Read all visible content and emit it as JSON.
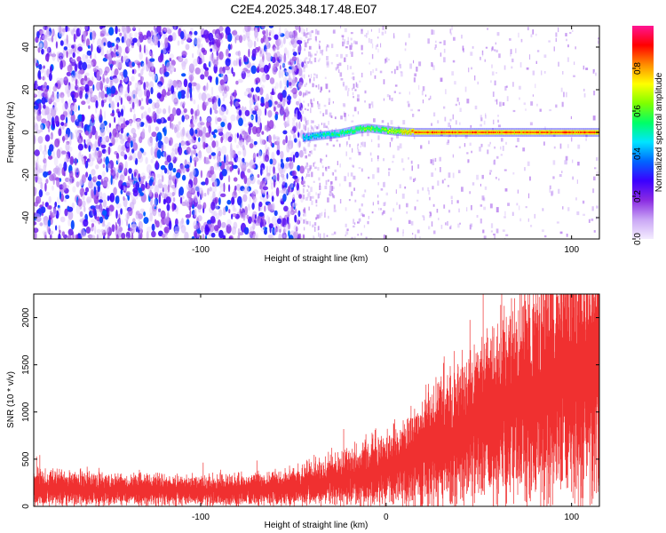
{
  "title": "C2E4.2025.348.17.48.E07",
  "chart_data": [
    {
      "type": "heatmap",
      "xlabel": "Height of straight line (km)",
      "ylabel": "Frequency (Hz)",
      "xlim": [
        -190,
        115
      ],
      "ylim": [
        -50,
        50
      ],
      "xticks": [
        -100,
        0,
        100
      ],
      "yticks": [
        -40,
        -20,
        0,
        20,
        40
      ],
      "colorbar": {
        "label": "Normalized spectral amplitude",
        "range": [
          0,
          1
        ],
        "ticks": [
          0.0,
          0.2,
          0.4,
          0.6,
          0.8
        ],
        "tick_labels": [
          "0.0",
          "0.2",
          "0.4",
          "0.6",
          "0.8"
        ],
        "colors": [
          "#f4ecff",
          "#c9a6f5",
          "#8a2be2",
          "#3b00ff",
          "#0066ff",
          "#00e5ff",
          "#00ff66",
          "#7fff00",
          "#ffff00",
          "#ff8c00",
          "#ff0000",
          "#ff1493"
        ]
      },
      "noise_region_x": [
        -190,
        -45
      ],
      "signal_track": {
        "x": [
          -45,
          -40,
          -35,
          -30,
          -25,
          -20,
          -15,
          -10,
          -5,
          0,
          5,
          10,
          15,
          30,
          60,
          90,
          115
        ],
        "y": [
          -2.5,
          -2,
          -1.5,
          -1,
          -0.5,
          0.5,
          1.5,
          2,
          1.5,
          1,
          0.5,
          0.2,
          0,
          0,
          0,
          0,
          0
        ],
        "amplitude": [
          0.45,
          0.5,
          0.5,
          0.55,
          0.55,
          0.6,
          0.6,
          0.65,
          0.6,
          0.65,
          0.7,
          0.75,
          0.85,
          0.85,
          0.85,
          0.85,
          0.85
        ]
      }
    },
    {
      "type": "line",
      "xlabel": "Height of straight line (km)",
      "ylabel": "SNR (10 * v/v)",
      "xlim": [
        -190,
        115
      ],
      "ylim": [
        0,
        2250
      ],
      "xticks": [
        -100,
        0,
        100
      ],
      "yticks": [
        0,
        500,
        1000,
        1500,
        2000
      ],
      "color": "#f03030",
      "trend": {
        "x": [
          -190,
          -150,
          -100,
          -60,
          -30,
          0,
          20,
          40,
          60,
          80,
          100,
          115
        ],
        "y": [
          200,
          180,
          170,
          190,
          280,
          420,
          600,
          820,
          1050,
          1250,
          1450,
          1600
        ]
      },
      "peak_max": 2250
    }
  ]
}
